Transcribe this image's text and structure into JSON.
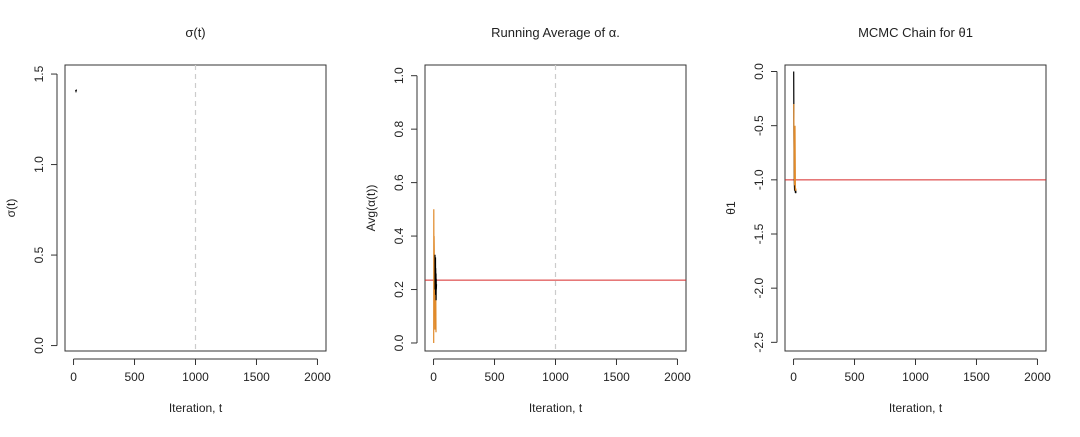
{
  "chart_data": [
    {
      "type": "line",
      "title": "σ(t)",
      "xlabel": "Iteration, t",
      "ylabel": "σ(t)",
      "xlim": [
        -70,
        2070
      ],
      "ylim": [
        -0.03,
        1.55
      ],
      "x_ticks": [
        0,
        500,
        1000,
        1500,
        2000
      ],
      "y_ticks": [
        0.0,
        0.5,
        1.0,
        1.5
      ],
      "x_tick_labels": [
        "0",
        "500",
        "1000",
        "1500",
        "2000"
      ],
      "y_tick_labels": [
        "0.0",
        "0.5",
        "1.0",
        "1.5"
      ],
      "vline": 1000,
      "series": [
        {
          "color": "#000000",
          "x": [
            17,
            20,
            23,
            25
          ],
          "y": [
            1.412,
            1.405,
            1.41,
            1.408
          ]
        }
      ]
    },
    {
      "type": "line",
      "title": "Running Average of α.",
      "xlabel": "Iteration, t",
      "ylabel": "Avg(α(t))",
      "xlim": [
        -70,
        2070
      ],
      "ylim": [
        -0.03,
        1.04
      ],
      "x_ticks": [
        0,
        500,
        1000,
        1500,
        2000
      ],
      "y_ticks": [
        0.0,
        0.2,
        0.4,
        0.6,
        0.8,
        1.0
      ],
      "x_tick_labels": [
        "0",
        "500",
        "1000",
        "1500",
        "2000"
      ],
      "y_tick_labels": [
        "0.0",
        "0.2",
        "0.4",
        "0.6",
        "0.8",
        "1.0"
      ],
      "vline": 1000,
      "hline": 0.235,
      "series": [
        {
          "color": "#e08a2a",
          "x": [
            1,
            2,
            3,
            4,
            5,
            6,
            8,
            10,
            12,
            14,
            16,
            18,
            20
          ],
          "y": [
            0.0,
            0.5,
            0.33,
            0.25,
            0.4,
            0.33,
            0.25,
            0.2,
            0.05,
            0.3,
            0.1,
            0.25,
            0.04
          ]
        },
        {
          "color": "#000000",
          "x": [
            12,
            13,
            14,
            15,
            16,
            17,
            18,
            19,
            20,
            21,
            22,
            23,
            24
          ],
          "y": [
            0.33,
            0.2,
            0.3,
            0.22,
            0.32,
            0.18,
            0.28,
            0.2,
            0.26,
            0.16,
            0.24,
            0.2,
            0.22
          ]
        }
      ]
    },
    {
      "type": "line",
      "title": "MCMC Chain for θ1",
      "xlabel": "Iteration, t",
      "ylabel": "θ1",
      "xlim": [
        -70,
        2070
      ],
      "ylim": [
        -2.58,
        0.06
      ],
      "x_ticks": [
        0,
        500,
        1000,
        1500,
        2000
      ],
      "y_ticks": [
        0.0,
        -0.5,
        -1.0,
        -1.5,
        -2.0,
        -2.5
      ],
      "x_tick_labels": [
        "0",
        "500",
        "1000",
        "1500",
        "2000"
      ],
      "y_tick_labels": [
        "0.0",
        "-0.5",
        "-1.0",
        "-1.5",
        "-2.0",
        "-2.5"
      ],
      "hline": -1.0,
      "series": [
        {
          "color": "#000000",
          "x": [
            1,
            3,
            5,
            7,
            9,
            12,
            15,
            18,
            20,
            22
          ],
          "y": [
            0.0,
            -0.5,
            -0.9,
            -1.05,
            -1.1,
            -1.08,
            -1.12,
            -1.1,
            -1.12,
            -1.12
          ]
        },
        {
          "color": "#e08a2a",
          "x": [
            2,
            4,
            6,
            9,
            12,
            15,
            18,
            21
          ],
          "y": [
            -0.3,
            -0.6,
            -0.95,
            -1.05,
            -0.5,
            -1.1,
            -1.08,
            -1.1
          ]
        }
      ]
    }
  ]
}
